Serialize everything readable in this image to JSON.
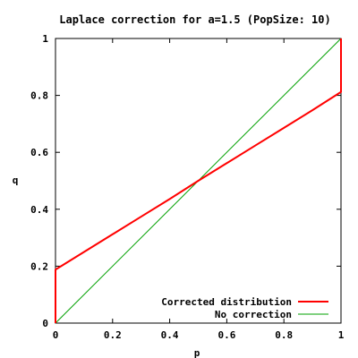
{
  "chart_data": {
    "type": "line",
    "title": "Laplace correction for a=1.5 (PopSize: 10)",
    "xlabel": "p",
    "ylabel": "q",
    "xlim": [
      0,
      1
    ],
    "ylim": [
      0,
      1
    ],
    "x_ticks": [
      0,
      0.2,
      0.4,
      0.6,
      0.8,
      1
    ],
    "y_ticks": [
      0,
      0.2,
      0.4,
      0.6,
      0.8,
      1
    ],
    "x_tick_labels": [
      "0",
      "0.2",
      "0.4",
      "0.6",
      "0.8",
      "1"
    ],
    "y_tick_labels": [
      "0",
      "0.2",
      "0.4",
      "0.6",
      "0.8",
      "1"
    ],
    "grid": false,
    "legend_position": "bottom-right",
    "series": [
      {
        "name": "Corrected distribution",
        "color": "#ff0000",
        "x": [
          0,
          0,
          0.1,
          0.2,
          0.3,
          0.4,
          0.5,
          0.6,
          0.7,
          0.8,
          0.9,
          1,
          1
        ],
        "y": [
          0,
          0.188,
          0.25,
          0.312,
          0.374,
          0.436,
          0.5,
          0.562,
          0.624,
          0.686,
          0.748,
          0.812,
          1
        ]
      },
      {
        "name": "No correction",
        "color": "#00a000",
        "x": [
          0,
          1
        ],
        "y": [
          0,
          1
        ]
      }
    ]
  }
}
